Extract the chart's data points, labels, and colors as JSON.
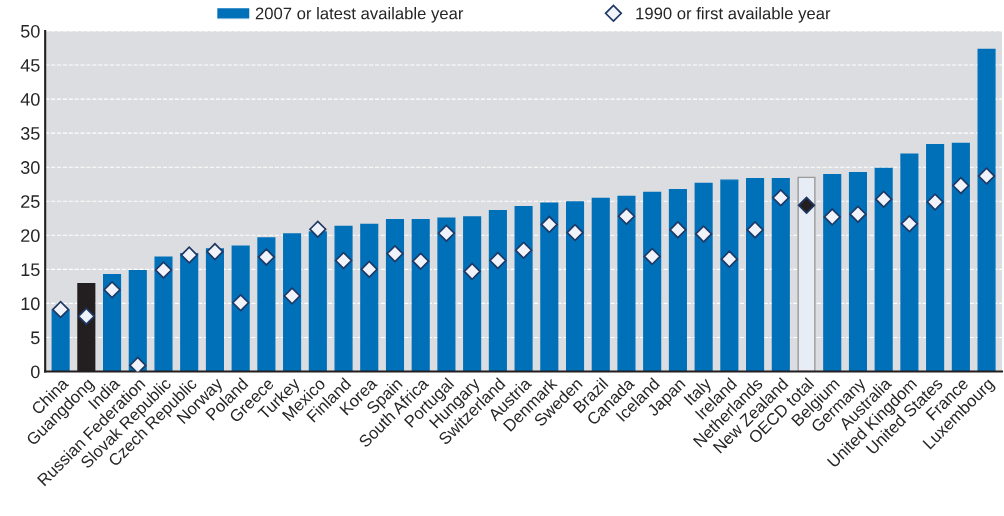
{
  "chart_data": {
    "type": "bar",
    "categories": [
      "China",
      "Guangdong",
      "India",
      "Russian Federation",
      "Slovak Republic",
      "Czech Republic",
      "Norway",
      "Poland",
      "Greece",
      "Turkey",
      "Mexico",
      "Finland",
      "Korea",
      "Spain",
      "South Africa",
      "Portugal",
      "Hungary",
      "Switzerland",
      "Austria",
      "Denmark",
      "Sweden",
      "Brazil",
      "Canada",
      "Iceland",
      "Japan",
      "Italy",
      "Ireland",
      "Netherlands",
      "New Zealand",
      "OECD total",
      "Belgium",
      "Germany",
      "Australia",
      "United Kingdom",
      "United States",
      "France",
      "Luxembourg"
    ],
    "series": [
      {
        "name": "2007 or latest available year",
        "color": "#0070b8",
        "colors": [
          "#0070b8",
          "#231f20",
          "#0070b8",
          "#0070b8",
          "#0070b8",
          "#0070b8",
          "#0070b8",
          "#0070b8",
          "#0070b8",
          "#0070b8",
          "#0070b8",
          "#0070b8",
          "#0070b8",
          "#0070b8",
          "#0070b8",
          "#0070b8",
          "#0070b8",
          "#0070b8",
          "#0070b8",
          "#0070b8",
          "#0070b8",
          "#0070b8",
          "#0070b8",
          "#0070b8",
          "#0070b8",
          "#0070b8",
          "#0070b8",
          "#0070b8",
          "#0070b8",
          "#e8ecf5",
          "#0070b8",
          "#0070b8",
          "#0070b8",
          "#0070b8",
          "#0070b8",
          "#0070b8",
          "#0070b8"
        ],
        "values": [
          9.0,
          12.9,
          14.2,
          14.8,
          16.8,
          17.3,
          18.0,
          18.4,
          19.6,
          20.2,
          20.5,
          21.3,
          21.6,
          22.3,
          22.3,
          22.5,
          22.7,
          23.6,
          24.2,
          24.7,
          24.9,
          25.4,
          25.7,
          26.3,
          26.7,
          27.6,
          28.1,
          28.3,
          28.3,
          28.5,
          28.9,
          29.2,
          29.8,
          31.9,
          33.3,
          33.5,
          47.3
        ]
      },
      {
        "name": "1990 or first available year",
        "type": "scatter",
        "marker": "diamond",
        "color": "#f0f3fa",
        "colors": [
          "#f0f3fa",
          "#f0f3fa",
          "#f0f3fa",
          "#f0f3fa",
          "#f0f3fa",
          "#f0f3fa",
          "#f0f3fa",
          "#f0f3fa",
          "#f0f3fa",
          "#f0f3fa",
          "#f0f3fa",
          "#f0f3fa",
          "#f0f3fa",
          "#f0f3fa",
          "#f0f3fa",
          "#f0f3fa",
          "#f0f3fa",
          "#f0f3fa",
          "#f0f3fa",
          "#f0f3fa",
          "#f0f3fa",
          "#f0f3fa",
          "#f0f3fa",
          "#f0f3fa",
          "#f0f3fa",
          "#f0f3fa",
          "#f0f3fa",
          "#f0f3fa",
          "#f0f3fa",
          "#231f20",
          "#f0f3fa",
          "#f0f3fa",
          "#f0f3fa",
          "#f0f3fa",
          "#f0f3fa",
          "#f0f3fa",
          "#f0f3fa"
        ],
        "values": [
          9.1,
          8.1,
          12.0,
          0.9,
          14.9,
          17.1,
          17.6,
          10.1,
          16.8,
          11.1,
          20.9,
          16.3,
          15.0,
          17.3,
          16.2,
          20.3,
          14.7,
          16.3,
          17.8,
          21.6,
          20.4,
          null,
          22.8,
          16.9,
          20.8,
          20.2,
          16.5,
          20.8,
          25.5,
          24.4,
          22.7,
          23.1,
          25.3,
          21.7,
          24.9,
          27.3,
          28.7
        ]
      }
    ],
    "ylim": [
      0,
      50
    ],
    "yticks": [
      0,
      5,
      10,
      15,
      20,
      25,
      30,
      35,
      40,
      45,
      50
    ],
    "grid": "y",
    "legend": "top"
  }
}
